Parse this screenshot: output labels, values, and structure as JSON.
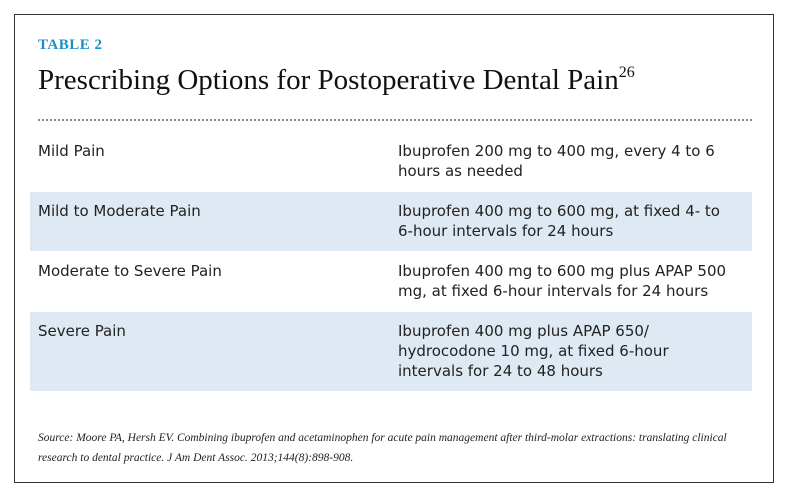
{
  "header": {
    "label": "TABLE 2",
    "title": "Prescribing Options for Postoperative Dental Pain",
    "superscript": "26"
  },
  "table": {
    "rows": [
      [
        "Mild Pain",
        "Ibuprofen 200 mg to 400 mg, every 4 to 6 hours as needed"
      ],
      [
        "Mild to Moderate Pain",
        "Ibuprofen 400 mg to 600 mg, at fixed 4- to 6-hour intervals for 24 hours"
      ],
      [
        "Moderate to Severe Pain",
        "Ibuprofen 400 mg to 600 mg plus APAP 500 mg, at fixed 6-hour intervals for 24 hours"
      ],
      [
        "Severe Pain",
        "Ibuprofen 400 mg plus APAP 650/ hydrocodone 10 mg, at fixed 6-hour intervals for 24 to 48 hours"
      ]
    ]
  },
  "source": "Source: Moore PA, Hersh EV. Combining ibuprofen and acetaminophen for acute pain management after third-molar extractions: translating clinical research to dental practice. J Am Dent Assoc. 2013;144(8):898-908."
}
